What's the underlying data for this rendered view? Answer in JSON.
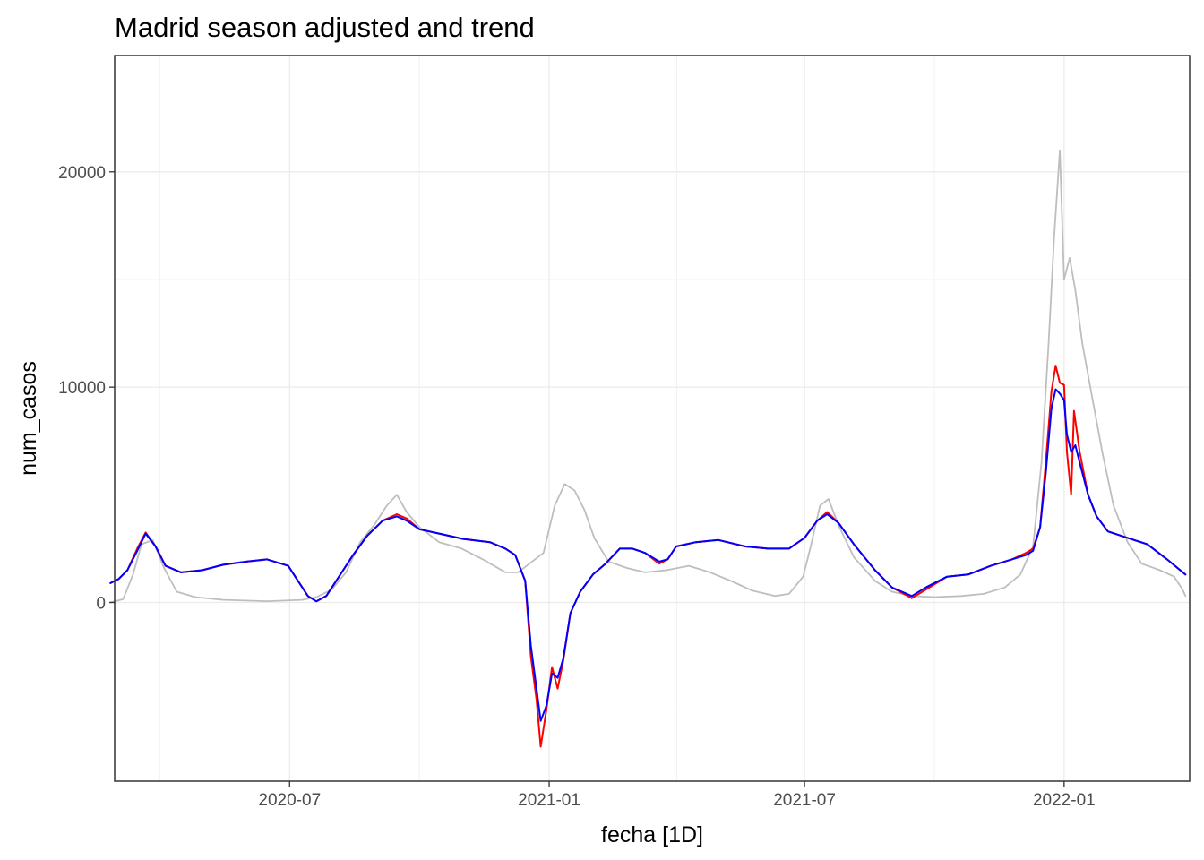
{
  "chart_data": {
    "type": "line",
    "title": "Madrid season adjusted and trend",
    "xlabel": "fecha [1D]",
    "ylabel": "num_casos",
    "x_range": [
      "2020-02-28",
      "2022-03-31"
    ],
    "ylim": [
      -8300,
      25400
    ],
    "x_ticks": [
      {
        "date": "2020-07-01",
        "label": "2020-07"
      },
      {
        "date": "2021-01-01",
        "label": "2021-01"
      },
      {
        "date": "2021-07-01",
        "label": "2021-07"
      },
      {
        "date": "2022-01-01",
        "label": "2022-01"
      }
    ],
    "y_ticks": [
      {
        "value": 0,
        "label": "0"
      },
      {
        "value": 10000,
        "label": "10000"
      },
      {
        "value": 20000,
        "label": "20000"
      }
    ],
    "grid": true,
    "legend": "none",
    "series": [
      {
        "color": "#bebebe",
        "points": [
          [
            "2020-02-25",
            0
          ],
          [
            "2020-03-05",
            150
          ],
          [
            "2020-03-12",
            1300
          ],
          [
            "2020-03-18",
            2700
          ],
          [
            "2020-03-26",
            2900
          ],
          [
            "2020-04-03",
            1600
          ],
          [
            "2020-04-12",
            500
          ],
          [
            "2020-04-25",
            250
          ],
          [
            "2020-05-15",
            120
          ],
          [
            "2020-06-15",
            60
          ],
          [
            "2020-07-10",
            120
          ],
          [
            "2020-07-20",
            250
          ],
          [
            "2020-07-31",
            600
          ],
          [
            "2020-08-10",
            1400
          ],
          [
            "2020-08-20",
            2800
          ],
          [
            "2020-08-30",
            3600
          ],
          [
            "2020-09-08",
            4500
          ],
          [
            "2020-09-15",
            5000
          ],
          [
            "2020-09-22",
            4200
          ],
          [
            "2020-10-01",
            3500
          ],
          [
            "2020-10-15",
            2800
          ],
          [
            "2020-10-31",
            2500
          ],
          [
            "2020-11-15",
            2000
          ],
          [
            "2020-12-01",
            1400
          ],
          [
            "2020-12-10",
            1400
          ],
          [
            "2020-12-20",
            1900
          ],
          [
            "2020-12-28",
            2300
          ],
          [
            "2021-01-05",
            4500
          ],
          [
            "2021-01-12",
            5500
          ],
          [
            "2021-01-19",
            5200
          ],
          [
            "2021-01-26",
            4300
          ],
          [
            "2021-02-02",
            3000
          ],
          [
            "2021-02-12",
            1900
          ],
          [
            "2021-02-25",
            1600
          ],
          [
            "2021-03-10",
            1400
          ],
          [
            "2021-03-25",
            1500
          ],
          [
            "2021-04-10",
            1700
          ],
          [
            "2021-04-25",
            1400
          ],
          [
            "2021-05-10",
            1000
          ],
          [
            "2021-05-25",
            550
          ],
          [
            "2021-06-10",
            300
          ],
          [
            "2021-06-20",
            400
          ],
          [
            "2021-06-30",
            1200
          ],
          [
            "2021-07-05",
            2500
          ],
          [
            "2021-07-12",
            4500
          ],
          [
            "2021-07-18",
            4800
          ],
          [
            "2021-07-25",
            3600
          ],
          [
            "2021-08-05",
            2100
          ],
          [
            "2021-08-20",
            1000
          ],
          [
            "2021-09-01",
            500
          ],
          [
            "2021-09-15",
            300
          ],
          [
            "2021-10-01",
            250
          ],
          [
            "2021-10-20",
            300
          ],
          [
            "2021-11-05",
            400
          ],
          [
            "2021-11-20",
            700
          ],
          [
            "2021-12-01",
            1300
          ],
          [
            "2021-12-10",
            2600
          ],
          [
            "2021-12-16",
            6500
          ],
          [
            "2021-12-21",
            12000
          ],
          [
            "2021-12-25",
            17000
          ],
          [
            "2021-12-29",
            21000
          ],
          [
            "2022-01-01",
            15000
          ],
          [
            "2022-01-05",
            16000
          ],
          [
            "2022-01-09",
            14500
          ],
          [
            "2022-01-14",
            12000
          ],
          [
            "2022-01-21",
            9500
          ],
          [
            "2022-01-28",
            7000
          ],
          [
            "2022-02-05",
            4500
          ],
          [
            "2022-02-15",
            2800
          ],
          [
            "2022-02-25",
            1800
          ],
          [
            "2022-03-10",
            1500
          ],
          [
            "2022-03-20",
            1200
          ],
          [
            "2022-03-26",
            600
          ],
          [
            "2022-03-28",
            300
          ]
        ]
      },
      {
        "color": "#ff0000",
        "points": [
          [
            "2020-02-25",
            900
          ],
          [
            "2020-03-02",
            1100
          ],
          [
            "2020-03-08",
            1500
          ],
          [
            "2020-03-15",
            2500
          ],
          [
            "2020-03-21",
            3250
          ],
          [
            "2020-03-28",
            2600
          ],
          [
            "2020-04-04",
            1700
          ],
          [
            "2020-04-15",
            1400
          ],
          [
            "2020-04-30",
            1500
          ],
          [
            "2020-05-15",
            1750
          ],
          [
            "2020-06-01",
            1900
          ],
          [
            "2020-06-15",
            2000
          ],
          [
            "2020-06-30",
            1700
          ],
          [
            "2020-07-08",
            900
          ],
          [
            "2020-07-14",
            300
          ],
          [
            "2020-07-20",
            50
          ],
          [
            "2020-07-27",
            300
          ],
          [
            "2020-08-05",
            1200
          ],
          [
            "2020-08-15",
            2200
          ],
          [
            "2020-08-25",
            3100
          ],
          [
            "2020-09-05",
            3800
          ],
          [
            "2020-09-15",
            4100
          ],
          [
            "2020-09-22",
            3900
          ],
          [
            "2020-10-01",
            3400
          ],
          [
            "2020-10-15",
            3200
          ],
          [
            "2020-11-01",
            2950
          ],
          [
            "2020-11-20",
            2800
          ],
          [
            "2020-12-01",
            2500
          ],
          [
            "2020-12-08",
            2200
          ],
          [
            "2020-12-15",
            1000
          ],
          [
            "2020-12-19",
            -2500
          ],
          [
            "2020-12-23",
            -4500
          ],
          [
            "2020-12-26",
            -6700
          ],
          [
            "2020-12-30",
            -5000
          ],
          [
            "2021-01-03",
            -3000
          ],
          [
            "2021-01-07",
            -4000
          ],
          [
            "2021-01-11",
            -2700
          ],
          [
            "2021-01-16",
            -500
          ],
          [
            "2021-01-23",
            500
          ],
          [
            "2021-02-01",
            1300
          ],
          [
            "2021-02-10",
            1800
          ],
          [
            "2021-02-20",
            2500
          ],
          [
            "2021-03-01",
            2500
          ],
          [
            "2021-03-10",
            2300
          ],
          [
            "2021-03-20",
            1800
          ],
          [
            "2021-03-26",
            2000
          ],
          [
            "2021-04-01",
            2600
          ],
          [
            "2021-04-15",
            2800
          ],
          [
            "2021-05-01",
            2900
          ],
          [
            "2021-05-20",
            2600
          ],
          [
            "2021-06-05",
            2500
          ],
          [
            "2021-06-20",
            2500
          ],
          [
            "2021-07-01",
            3000
          ],
          [
            "2021-07-10",
            3800
          ],
          [
            "2021-07-17",
            4200
          ],
          [
            "2021-07-25",
            3700
          ],
          [
            "2021-08-05",
            2700
          ],
          [
            "2021-08-20",
            1500
          ],
          [
            "2021-09-01",
            700
          ],
          [
            "2021-09-15",
            200
          ],
          [
            "2021-09-25",
            600
          ],
          [
            "2021-10-10",
            1200
          ],
          [
            "2021-10-25",
            1300
          ],
          [
            "2021-11-10",
            1700
          ],
          [
            "2021-11-25",
            2000
          ],
          [
            "2021-12-05",
            2300
          ],
          [
            "2021-12-10",
            2500
          ],
          [
            "2021-12-15",
            3500
          ],
          [
            "2021-12-19",
            6500
          ],
          [
            "2021-12-23",
            9800
          ],
          [
            "2021-12-26",
            11000
          ],
          [
            "2021-12-29",
            10200
          ],
          [
            "2022-01-01",
            10100
          ],
          [
            "2022-01-03",
            7000
          ],
          [
            "2022-01-06",
            5000
          ],
          [
            "2022-01-08",
            8900
          ],
          [
            "2022-01-12",
            7000
          ],
          [
            "2022-01-18",
            5000
          ],
          [
            "2022-01-24",
            4000
          ],
          [
            "2022-02-01",
            3300
          ],
          [
            "2022-02-15",
            3000
          ],
          [
            "2022-03-01",
            2700
          ],
          [
            "2022-03-15",
            2000
          ],
          [
            "2022-03-28",
            1300
          ]
        ]
      },
      {
        "color": "#0000ff",
        "points": [
          [
            "2020-02-25",
            900
          ],
          [
            "2020-03-02",
            1100
          ],
          [
            "2020-03-08",
            1500
          ],
          [
            "2020-03-15",
            2400
          ],
          [
            "2020-03-21",
            3200
          ],
          [
            "2020-03-28",
            2600
          ],
          [
            "2020-04-04",
            1700
          ],
          [
            "2020-04-15",
            1400
          ],
          [
            "2020-04-30",
            1500
          ],
          [
            "2020-05-15",
            1750
          ],
          [
            "2020-06-01",
            1900
          ],
          [
            "2020-06-15",
            2000
          ],
          [
            "2020-06-30",
            1700
          ],
          [
            "2020-07-08",
            900
          ],
          [
            "2020-07-14",
            300
          ],
          [
            "2020-07-20",
            50
          ],
          [
            "2020-07-27",
            300
          ],
          [
            "2020-08-05",
            1200
          ],
          [
            "2020-08-15",
            2200
          ],
          [
            "2020-08-25",
            3100
          ],
          [
            "2020-09-05",
            3800
          ],
          [
            "2020-09-15",
            4000
          ],
          [
            "2020-09-22",
            3800
          ],
          [
            "2020-10-01",
            3400
          ],
          [
            "2020-10-15",
            3200
          ],
          [
            "2020-11-01",
            2950
          ],
          [
            "2020-11-20",
            2800
          ],
          [
            "2020-12-01",
            2500
          ],
          [
            "2020-12-08",
            2200
          ],
          [
            "2020-12-15",
            1000
          ],
          [
            "2020-12-19",
            -2000
          ],
          [
            "2020-12-23",
            -4000
          ],
          [
            "2020-12-26",
            -5500
          ],
          [
            "2020-12-30",
            -4800
          ],
          [
            "2021-01-03",
            -3300
          ],
          [
            "2021-01-07",
            -3500
          ],
          [
            "2021-01-11",
            -2600
          ],
          [
            "2021-01-16",
            -500
          ],
          [
            "2021-01-23",
            500
          ],
          [
            "2021-02-01",
            1300
          ],
          [
            "2021-02-10",
            1800
          ],
          [
            "2021-02-20",
            2500
          ],
          [
            "2021-03-01",
            2500
          ],
          [
            "2021-03-10",
            2300
          ],
          [
            "2021-03-20",
            1900
          ],
          [
            "2021-03-26",
            2000
          ],
          [
            "2021-04-01",
            2600
          ],
          [
            "2021-04-15",
            2800
          ],
          [
            "2021-05-01",
            2900
          ],
          [
            "2021-05-20",
            2600
          ],
          [
            "2021-06-05",
            2500
          ],
          [
            "2021-06-20",
            2500
          ],
          [
            "2021-07-01",
            3000
          ],
          [
            "2021-07-10",
            3800
          ],
          [
            "2021-07-17",
            4100
          ],
          [
            "2021-07-25",
            3700
          ],
          [
            "2021-08-05",
            2700
          ],
          [
            "2021-08-20",
            1500
          ],
          [
            "2021-09-01",
            700
          ],
          [
            "2021-09-15",
            300
          ],
          [
            "2021-09-25",
            700
          ],
          [
            "2021-10-10",
            1200
          ],
          [
            "2021-10-25",
            1300
          ],
          [
            "2021-11-10",
            1700
          ],
          [
            "2021-11-25",
            2000
          ],
          [
            "2021-12-05",
            2200
          ],
          [
            "2021-12-10",
            2400
          ],
          [
            "2021-12-15",
            3500
          ],
          [
            "2021-12-19",
            6000
          ],
          [
            "2021-12-23",
            9000
          ],
          [
            "2021-12-26",
            9900
          ],
          [
            "2021-12-29",
            9700
          ],
          [
            "2022-01-01",
            9400
          ],
          [
            "2022-01-03",
            7800
          ],
          [
            "2022-01-06",
            7000
          ],
          [
            "2022-01-09",
            7300
          ],
          [
            "2022-01-12",
            6500
          ],
          [
            "2022-01-18",
            5000
          ],
          [
            "2022-01-24",
            4000
          ],
          [
            "2022-02-01",
            3300
          ],
          [
            "2022-02-15",
            3000
          ],
          [
            "2022-03-01",
            2700
          ],
          [
            "2022-03-15",
            2000
          ],
          [
            "2022-03-28",
            1300
          ]
        ]
      }
    ]
  }
}
